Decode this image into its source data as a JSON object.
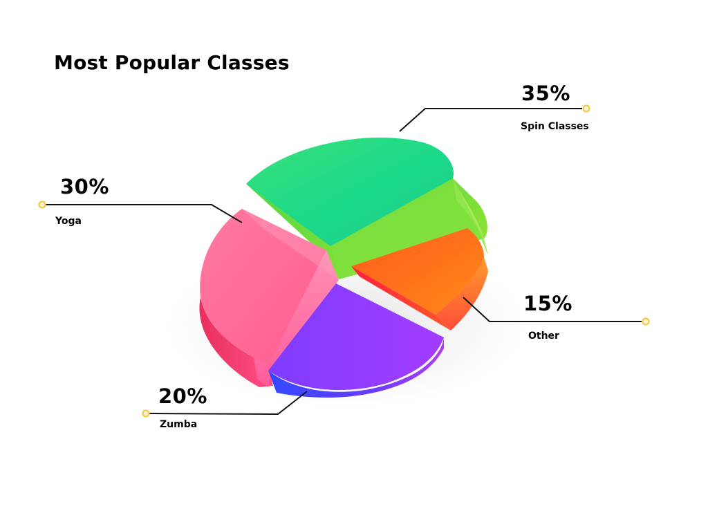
{
  "chart_data": {
    "type": "pie",
    "title": "Most Popular Classes",
    "slices": [
      {
        "label": "Spin Classes",
        "value": 35,
        "value_label": "35%",
        "color": "#1fd67a"
      },
      {
        "label": "Yoga",
        "value": 30,
        "value_label": "30%",
        "color": "#ff5f8f"
      },
      {
        "label": "Zumba",
        "value": 20,
        "value_label": "20%",
        "color": "#8a2bff"
      },
      {
        "label": "Other",
        "value": 15,
        "value_label": "15%",
        "color": "#ff7a1f"
      }
    ],
    "legend": "callout labels"
  },
  "colors": {
    "leader_line": "#111111",
    "marker_ring": "#f2c94c"
  }
}
